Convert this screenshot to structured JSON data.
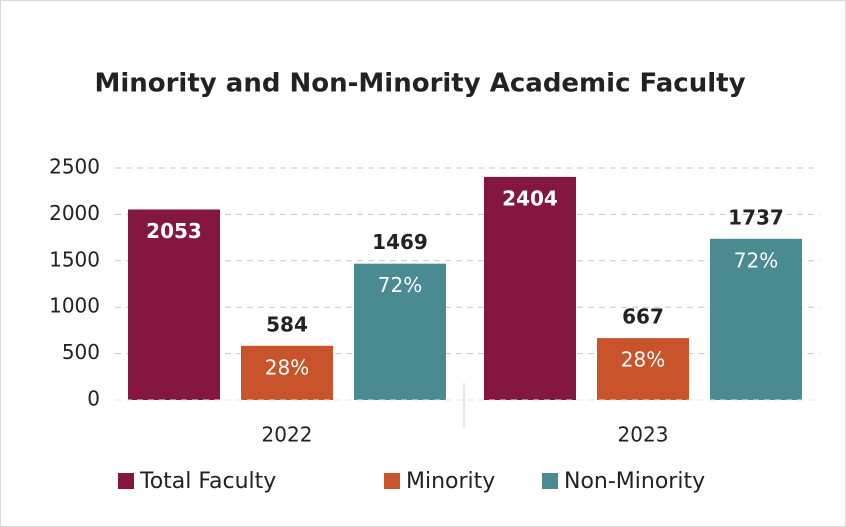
{
  "chart_data": {
    "type": "bar",
    "title": "Minority and Non-Minority Academic Faculty",
    "categories": [
      "2022",
      "2023"
    ],
    "series": [
      {
        "name": "Total Faculty",
        "color": "#84173f",
        "values": [
          2053,
          2404
        ]
      },
      {
        "name": "Minority",
        "color": "#c9532a",
        "values": [
          584,
          667
        ],
        "percent_labels": [
          "28%",
          "28%"
        ]
      },
      {
        "name": "Non-Minority",
        "color": "#4a8a91",
        "values": [
          1469,
          1737
        ],
        "percent_labels": [
          "72%",
          "72%"
        ]
      }
    ],
    "ylim": [
      0,
      2500
    ],
    "yticks": [
      0,
      500,
      1000,
      1500,
      2000,
      2500
    ],
    "grid": true,
    "legend": "bottom"
  }
}
